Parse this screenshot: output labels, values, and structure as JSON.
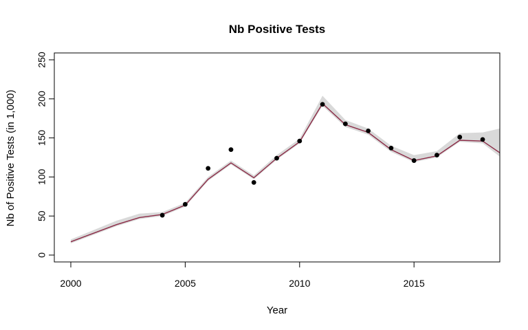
{
  "chart_data": {
    "type": "line",
    "title": "Nb Positive Tests",
    "xlabel": "Year",
    "ylabel": "Nb of Positive Tests (in 1,000)",
    "xlim": [
      2000,
      2018.75
    ],
    "ylim": [
      0,
      250
    ],
    "xticks": [
      2000,
      2005,
      2010,
      2015
    ],
    "yticks": [
      0,
      50,
      100,
      150,
      200,
      250
    ],
    "x_tick_labels": [
      "2000",
      "2005",
      "2010",
      "2015"
    ],
    "y_tick_labels": [
      "0",
      "50",
      "100",
      "150",
      "200",
      "250"
    ],
    "grid": false,
    "legend": "none",
    "colors": {
      "line": "#8b2a45",
      "band": "#d9d9d9",
      "points": "#000000",
      "frame": "#000000"
    },
    "series": [
      {
        "type": "line",
        "x": [
          2000,
          2001,
          2002,
          2003,
          2004,
          2005,
          2006,
          2007,
          2008,
          2009,
          2010,
          2011,
          2012,
          2013,
          2014,
          2015,
          2016,
          2017,
          2018,
          2018.75
        ],
        "values": [
          17,
          28,
          39,
          48,
          52,
          64,
          97,
          118,
          99,
          124,
          145,
          194,
          167,
          157,
          135,
          121,
          127,
          147,
          146,
          131
        ]
      },
      {
        "type": "band",
        "x": [
          2000,
          2001,
          2002,
          2003,
          2004,
          2005,
          2006,
          2007,
          2008,
          2009,
          2010,
          2011,
          2012,
          2013,
          2014,
          2015,
          2016,
          2017,
          2018,
          2018.75
        ],
        "lower": [
          15,
          26,
          37,
          46,
          50,
          62,
          95,
          116,
          97,
          122,
          143,
          191,
          164,
          154,
          132,
          119,
          125,
          145,
          143,
          126
        ],
        "upper": [
          20,
          32,
          44,
          53,
          55,
          67,
          100,
          121,
          102,
          128,
          149,
          204,
          173,
          162,
          140,
          128,
          133,
          156,
          157,
          162
        ]
      },
      {
        "type": "scatter",
        "x": [
          2004,
          2005,
          2006,
          2007,
          2008,
          2009,
          2010,
          2011,
          2012,
          2013,
          2014,
          2015,
          2016,
          2017,
          2018
        ],
        "values": [
          51,
          65,
          111,
          135,
          93,
          124,
          146,
          193,
          168,
          159,
          137,
          121,
          128,
          151,
          148
        ]
      }
    ]
  }
}
